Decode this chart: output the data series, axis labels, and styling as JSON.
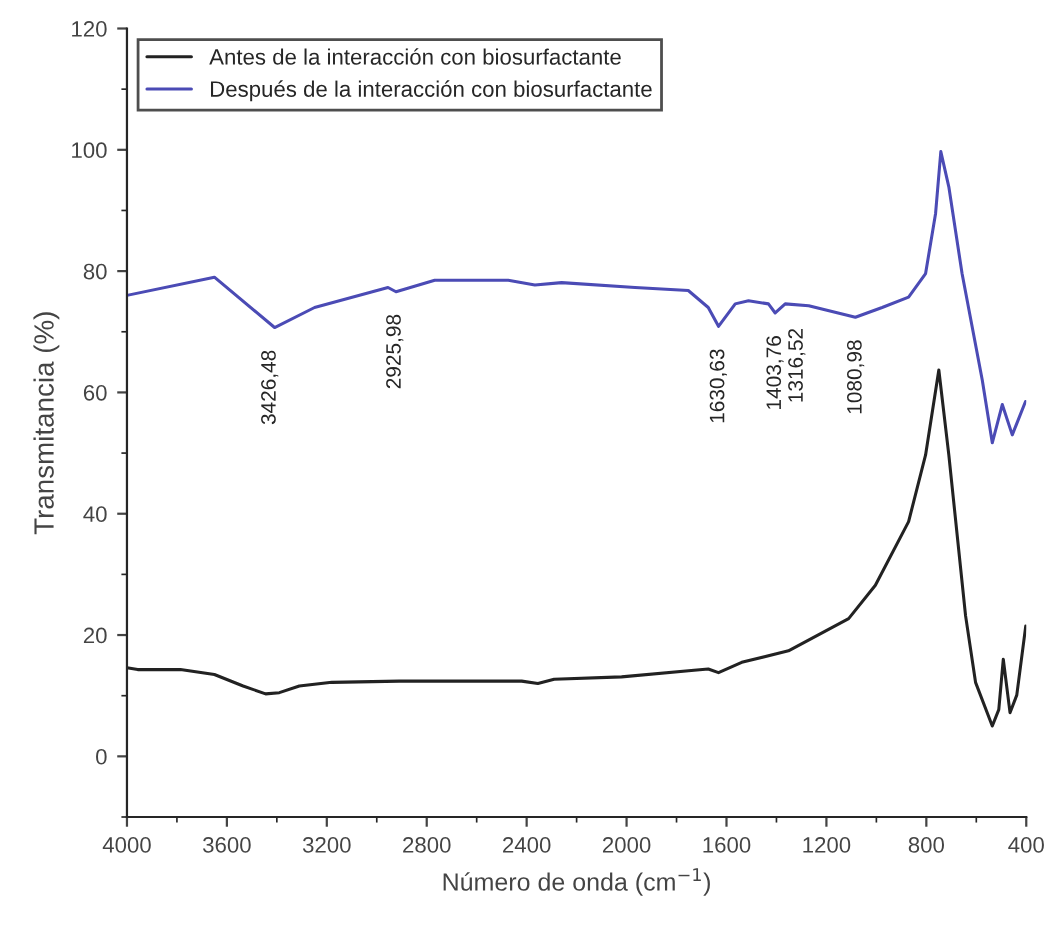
{
  "chart_data": {
    "type": "line",
    "xlabel": "Número de onda (cm$^{−1}$)",
    "ylabel": "Transmitancia (%)",
    "xlim": [
      4000,
      400
    ],
    "xticks": [
      4000,
      3600,
      3200,
      2800,
      2400,
      2000,
      1600,
      1200,
      800,
      400
    ],
    "ylim": [
      -10,
      120
    ],
    "yticks": [
      0,
      20,
      40,
      60,
      80,
      100,
      120
    ],
    "grid": false,
    "legend": "top left",
    "marker": "none",
    "line_style": "solid",
    "series": [
      {
        "name": "Antes de la interacción con biosurfactante",
        "color": "#222222",
        "x": [
          4000,
          3957,
          3786,
          3650,
          3535,
          3445,
          3390,
          3310,
          3180,
          2910,
          2420,
          2355,
          2290,
          2020,
          1730,
          1673,
          1632,
          1539,
          1352,
          1111,
          1004,
          871,
          803,
          750,
          710,
          643,
          603,
          536,
          510,
          492,
          465,
          438,
          402
        ],
        "values": [
          14.6,
          14.3,
          14.3,
          13.5,
          11.6,
          10.3,
          10.5,
          11.6,
          12.2,
          12.4,
          12.4,
          12.0,
          12.7,
          13.1,
          14.2,
          14.4,
          13.8,
          15.5,
          17.4,
          22.7,
          28.2,
          38.7,
          49.7,
          63.7,
          49.7,
          23.2,
          12.2,
          5.0,
          7.7,
          16.0,
          7.2,
          10.1,
          21.5
        ]
      },
      {
        "name": "Después de la interacción con biosurfactante",
        "color": "#4b4bb5",
        "x": [
          4000,
          3650,
          3409,
          3249,
          2955,
          2923,
          2768,
          2474,
          2367,
          2260,
          1966,
          1753,
          1673,
          1632,
          1565,
          1512,
          1432,
          1405,
          1365,
          1271,
          1084,
          977,
          871,
          803,
          763,
          742,
          710,
          657,
          576,
          536,
          496,
          456,
          403
        ],
        "values": [
          76.0,
          79.0,
          70.7,
          74.0,
          77.3,
          76.6,
          78.5,
          78.5,
          77.7,
          78.1,
          77.3,
          76.8,
          74.0,
          70.9,
          74.6,
          75.1,
          74.6,
          73.1,
          74.6,
          74.3,
          72.4,
          74.0,
          75.7,
          79.6,
          89.5,
          99.7,
          93.9,
          79.6,
          62.0,
          51.7,
          58.0,
          53.0,
          58.5
        ]
      }
    ],
    "annotations": [
      {
        "text": "3426,48",
        "x": 3426.48,
        "y": 70.7
      },
      {
        "text": "2925,98",
        "x": 2925.98,
        "y": 76.6
      },
      {
        "text": "1630,63",
        "x": 1630.63,
        "y": 70.9
      },
      {
        "text": "1403,76",
        "x": 1403.76,
        "y": 73.1
      },
      {
        "text": "1316,52",
        "x": 1316.52,
        "y": 74.3
      },
      {
        "text": "1080,98",
        "x": 1080.98,
        "y": 72.4
      }
    ]
  }
}
